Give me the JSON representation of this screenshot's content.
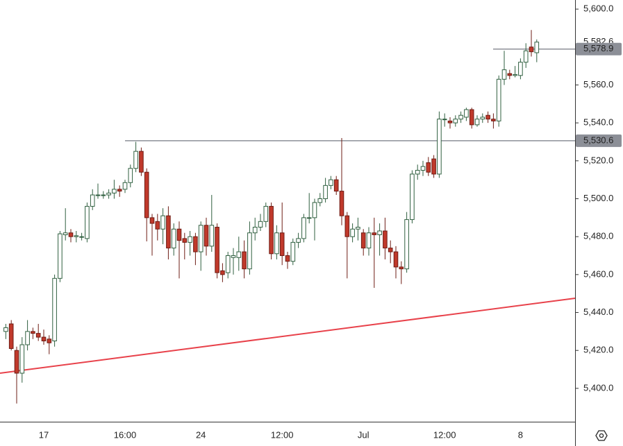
{
  "chart_data": {
    "type": "candlestick",
    "categories": [
      null,
      null,
      null,
      null,
      null,
      null,
      null,
      "17",
      null,
      null,
      null,
      null,
      null,
      null,
      null,
      null,
      null,
      null,
      null,
      null,
      null,
      null,
      "16:00",
      null,
      null,
      null,
      null,
      null,
      null,
      null,
      null,
      null,
      null,
      null,
      null,
      null,
      "24",
      null,
      null,
      null,
      null,
      null,
      null,
      null,
      null,
      null,
      null,
      null,
      null,
      null,
      null,
      "12:00",
      null,
      null,
      null,
      null,
      null,
      null,
      null,
      null,
      null,
      null,
      null,
      null,
      null,
      null,
      "Jul",
      null,
      null,
      null,
      null,
      null,
      null,
      null,
      null,
      null,
      null,
      null,
      null,
      null,
      null,
      "12:00",
      null,
      null,
      null,
      null,
      null,
      null,
      null,
      null,
      null,
      null,
      null,
      null,
      null,
      "8",
      null,
      null,
      null
    ],
    "open": [
      5430,
      5434,
      5420,
      5408,
      5423,
      5430,
      5429,
      5427,
      5426,
      5425,
      5458,
      5481,
      5482,
      5480,
      5480,
      5479,
      5496,
      5502,
      5502,
      5502,
      5503,
      5505,
      5505,
      5508.5,
      5516,
      5525,
      5514,
      5490,
      5488,
      5484,
      5491,
      5474,
      5484,
      5479,
      5477,
      5480,
      5472,
      5486,
      5475,
      5485,
      5462,
      5461,
      5469,
      5469,
      5472,
      5463,
      5482,
      5485,
      5488,
      5496,
      5471,
      5482,
      5470,
      5467,
      5477,
      5479,
      5490,
      5490,
      5498,
      5500,
      5507,
      5510,
      5504,
      5491,
      5480,
      5484,
      5482,
      5474,
      5482,
      5481,
      5483,
      5474,
      5472,
      5464,
      5463,
      5489,
      5513,
      5515,
      5519,
      5521,
      5513,
      5542,
      5541,
      5540,
      5542,
      5543,
      5547,
      5539,
      5542,
      5544,
      5542,
      5541,
      5563,
      5566,
      5565,
      5565,
      5572,
      5580,
      5577
    ],
    "high": [
      5434,
      5436,
      5422,
      5427,
      5436,
      5432,
      5434,
      5431,
      5428,
      5460,
      5483,
      5495,
      5484,
      5483,
      5482,
      5498,
      5505,
      5508,
      5504,
      5505,
      5510,
      5507,
      5510,
      5518,
      5530,
      5527,
      5516,
      5492,
      5492,
      5495,
      5496,
      5487,
      5488,
      5482,
      5483,
      5482,
      5488,
      5490,
      5502,
      5487,
      5466,
      5472,
      5474,
      5480,
      5478,
      5488,
      5490,
      5492,
      5498,
      5498,
      5486,
      5498,
      5472,
      5479,
      5482,
      5492,
      5503,
      5500,
      5503,
      5511,
      5512,
      5512,
      5532,
      5493,
      5487,
      5490,
      5484,
      5485,
      5490,
      5487,
      5490,
      5478,
      5475,
      5467,
      5493,
      5515,
      5518,
      5520,
      5522,
      5523,
      5546,
      5545,
      5543,
      5544,
      5546,
      5548,
      5548,
      5544,
      5545,
      5546,
      5545,
      5565,
      5578,
      5568,
      5570,
      5574,
      5582,
      5589,
      5584
    ],
    "low": [
      5426,
      5420,
      5392,
      5403,
      5420,
      5426,
      5425,
      5423,
      5418,
      5422,
      5456,
      5478,
      5477,
      5477,
      5478,
      5477,
      5494,
      5500,
      5500,
      5500,
      5500,
      5501,
      5503,
      5506,
      5514,
      5512,
      5477.5,
      5470,
      5478,
      5476,
      5468,
      5470,
      5458,
      5468,
      5470,
      5465,
      5462,
      5470,
      5472,
      5458,
      5456,
      5458,
      5460,
      5462,
      5458,
      5460,
      5478,
      5483,
      5485,
      5468,
      5468,
      5465,
      5463,
      5465,
      5474,
      5477,
      5487,
      5478,
      5496,
      5498,
      5505,
      5502,
      5486,
      5458,
      5477,
      5478,
      5470,
      5470,
      5453,
      5470,
      5468,
      5466,
      5458,
      5455,
      5461,
      5487,
      5510,
      5512,
      5512,
      5511,
      5511,
      5538,
      5537,
      5538,
      5540,
      5541,
      5537,
      5538,
      5540,
      5540,
      5537,
      5538,
      5560,
      5563,
      5564,
      5563,
      5569,
      5575,
      5572
    ],
    "close": [
      5432,
      5421,
      5408,
      5423,
      5430,
      5429,
      5427,
      5425,
      5424,
      5458,
      5481.5,
      5482,
      5480,
      5480.5,
      5480,
      5496,
      5502,
      5502,
      5502,
      5503,
      5505,
      5504,
      5508.5,
      5516,
      5525,
      5514,
      5490,
      5487,
      5484,
      5491,
      5474,
      5484,
      5478,
      5477,
      5480,
      5472,
      5486,
      5475,
      5486,
      5461,
      5460,
      5470,
      5470,
      5472,
      5463,
      5482,
      5485,
      5488,
      5496,
      5471,
      5482,
      5470,
      5467,
      5477,
      5479,
      5490,
      5490,
      5498,
      5500,
      5507,
      5510,
      5504,
      5491,
      5480,
      5484,
      5485,
      5474,
      5482,
      5481,
      5483,
      5474,
      5472,
      5464,
      5463,
      5489,
      5513,
      5515,
      5517,
      5514,
      5513,
      5542,
      5542,
      5540,
      5542,
      5544,
      5547,
      5539,
      5542,
      5543,
      5542,
      5541,
      5563,
      5568,
      5565,
      5565.5,
      5572,
      5578,
      5577.5,
      5582.6
    ],
    "last_price": {
      "value": 5582.6,
      "label": "5,582.6"
    },
    "levels": [
      {
        "value": 5578.9,
        "label": "5,578.9"
      },
      {
        "value": 5530.6,
        "label": "5,530.6"
      }
    ],
    "trendline": [
      5408,
      5447.5
    ],
    "up_color": "#ffffff",
    "up_border": "#2f5f3f",
    "down_color": "#c0392b",
    "down_border": "#6e1c14",
    "level_color": "#8c8f97",
    "trend_color": "#e8414a",
    "ylim": [
      5382.4,
      5604.8
    ],
    "yticks": [
      {
        "value": 5400,
        "label": "5,400.0"
      },
      {
        "value": 5420,
        "label": "5,420.0"
      },
      {
        "value": 5440,
        "label": "5,440.0"
      },
      {
        "value": 5460,
        "label": "5,460.0"
      },
      {
        "value": 5480,
        "label": "5,480.0"
      },
      {
        "value": 5500,
        "label": "5,500.0"
      },
      {
        "value": 5520,
        "label": "5,520.0"
      },
      {
        "value": 5540,
        "label": "5,540.0"
      },
      {
        "value": 5560,
        "label": "5,560.0"
      },
      {
        "value": 5580,
        "label": "5,580.0"
      },
      {
        "value": 5600,
        "label": "5,600.0"
      }
    ]
  }
}
